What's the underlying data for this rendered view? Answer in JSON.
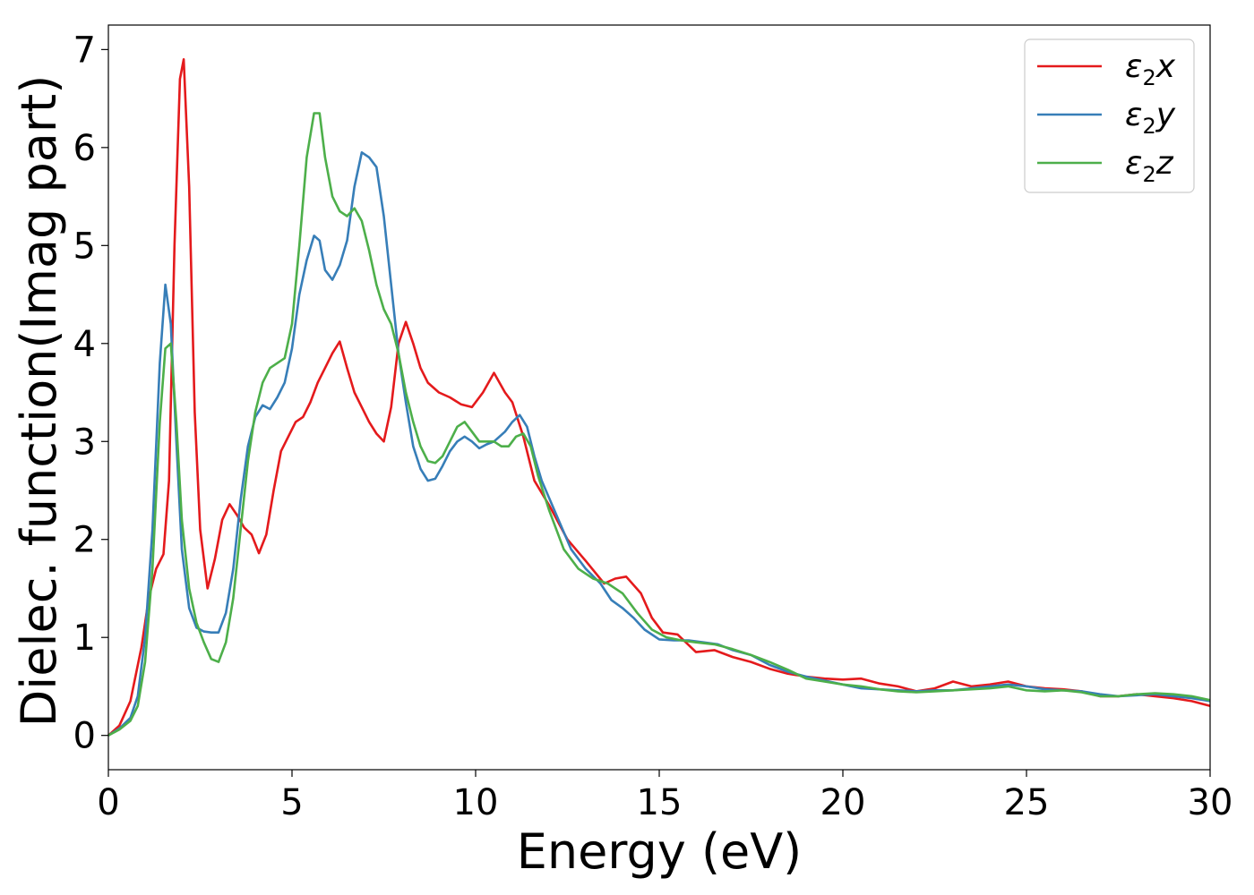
{
  "chart_data": {
    "type": "line",
    "title": "",
    "xlabel": "Energy (eV)",
    "ylabel": "Dielec. function(Imag part)",
    "xlim": [
      0,
      30
    ],
    "ylim": [
      -0.35,
      7.25
    ],
    "xticks": [
      0,
      5,
      10,
      15,
      20,
      25,
      30
    ],
    "yticks": [
      0,
      1,
      2,
      3,
      4,
      5,
      6,
      7
    ],
    "grid": false,
    "legend_position": "top-right",
    "series": [
      {
        "name": "ε2x",
        "legend": {
          "base": "ε",
          "sub": "2",
          "var": "x"
        },
        "color": "#e41a1c",
        "points": [
          [
            0,
            0
          ],
          [
            0.3,
            0.1
          ],
          [
            0.6,
            0.35
          ],
          [
            0.9,
            0.9
          ],
          [
            1.1,
            1.4
          ],
          [
            1.3,
            1.7
          ],
          [
            1.5,
            1.85
          ],
          [
            1.65,
            2.6
          ],
          [
            1.8,
            5.0
          ],
          [
            1.95,
            6.7
          ],
          [
            2.05,
            6.9
          ],
          [
            2.2,
            5.6
          ],
          [
            2.35,
            3.3
          ],
          [
            2.5,
            2.1
          ],
          [
            2.7,
            1.5
          ],
          [
            2.9,
            1.8
          ],
          [
            3.1,
            2.2
          ],
          [
            3.3,
            2.36
          ],
          [
            3.5,
            2.25
          ],
          [
            3.7,
            2.12
          ],
          [
            3.9,
            2.05
          ],
          [
            4.1,
            1.86
          ],
          [
            4.3,
            2.05
          ],
          [
            4.5,
            2.5
          ],
          [
            4.7,
            2.9
          ],
          [
            4.9,
            3.05
          ],
          [
            5.1,
            3.2
          ],
          [
            5.3,
            3.25
          ],
          [
            5.5,
            3.4
          ],
          [
            5.7,
            3.6
          ],
          [
            5.9,
            3.75
          ],
          [
            6.1,
            3.9
          ],
          [
            6.3,
            4.02
          ],
          [
            6.5,
            3.75
          ],
          [
            6.7,
            3.5
          ],
          [
            6.9,
            3.35
          ],
          [
            7.1,
            3.2
          ],
          [
            7.3,
            3.08
          ],
          [
            7.5,
            3.0
          ],
          [
            7.7,
            3.35
          ],
          [
            7.9,
            4.0
          ],
          [
            8.1,
            4.22
          ],
          [
            8.3,
            4.0
          ],
          [
            8.5,
            3.75
          ],
          [
            8.7,
            3.6
          ],
          [
            9.0,
            3.5
          ],
          [
            9.3,
            3.45
          ],
          [
            9.6,
            3.38
          ],
          [
            9.9,
            3.35
          ],
          [
            10.2,
            3.5
          ],
          [
            10.5,
            3.7
          ],
          [
            10.8,
            3.5
          ],
          [
            11.0,
            3.4
          ],
          [
            11.3,
            3.05
          ],
          [
            11.6,
            2.6
          ],
          [
            12.0,
            2.35
          ],
          [
            12.5,
            2.0
          ],
          [
            13.0,
            1.78
          ],
          [
            13.5,
            1.55
          ],
          [
            13.8,
            1.6
          ],
          [
            14.1,
            1.62
          ],
          [
            14.5,
            1.45
          ],
          [
            14.8,
            1.2
          ],
          [
            15.1,
            1.05
          ],
          [
            15.5,
            1.03
          ],
          [
            16.0,
            0.85
          ],
          [
            16.5,
            0.87
          ],
          [
            17.0,
            0.8
          ],
          [
            17.5,
            0.75
          ],
          [
            18.0,
            0.68
          ],
          [
            18.5,
            0.63
          ],
          [
            19.0,
            0.6
          ],
          [
            19.5,
            0.58
          ],
          [
            20.0,
            0.57
          ],
          [
            20.5,
            0.58
          ],
          [
            21.0,
            0.53
          ],
          [
            21.5,
            0.5
          ],
          [
            22.0,
            0.45
          ],
          [
            22.5,
            0.48
          ],
          [
            23.0,
            0.55
          ],
          [
            23.5,
            0.5
          ],
          [
            24.0,
            0.52
          ],
          [
            24.5,
            0.55
          ],
          [
            25.0,
            0.5
          ],
          [
            25.5,
            0.48
          ],
          [
            26.0,
            0.47
          ],
          [
            26.5,
            0.45
          ],
          [
            27.0,
            0.4
          ],
          [
            27.5,
            0.4
          ],
          [
            28.0,
            0.42
          ],
          [
            28.5,
            0.4
          ],
          [
            29.0,
            0.38
          ],
          [
            29.5,
            0.35
          ],
          [
            30.0,
            0.3
          ]
        ]
      },
      {
        "name": "ε2y",
        "legend": {
          "base": "ε",
          "sub": "2",
          "var": "y"
        },
        "color": "#377eb8",
        "points": [
          [
            0,
            0
          ],
          [
            0.3,
            0.07
          ],
          [
            0.6,
            0.18
          ],
          [
            0.8,
            0.4
          ],
          [
            1.0,
            1.0
          ],
          [
            1.2,
            2.1
          ],
          [
            1.4,
            3.8
          ],
          [
            1.55,
            4.6
          ],
          [
            1.7,
            4.2
          ],
          [
            1.85,
            3.0
          ],
          [
            2.0,
            1.9
          ],
          [
            2.2,
            1.3
          ],
          [
            2.4,
            1.1
          ],
          [
            2.6,
            1.06
          ],
          [
            2.8,
            1.05
          ],
          [
            3.0,
            1.05
          ],
          [
            3.2,
            1.25
          ],
          [
            3.4,
            1.7
          ],
          [
            3.6,
            2.4
          ],
          [
            3.8,
            2.95
          ],
          [
            4.0,
            3.25
          ],
          [
            4.2,
            3.37
          ],
          [
            4.4,
            3.33
          ],
          [
            4.6,
            3.45
          ],
          [
            4.8,
            3.6
          ],
          [
            5.0,
            3.95
          ],
          [
            5.2,
            4.5
          ],
          [
            5.4,
            4.85
          ],
          [
            5.6,
            5.1
          ],
          [
            5.75,
            5.05
          ],
          [
            5.9,
            4.75
          ],
          [
            6.1,
            4.65
          ],
          [
            6.3,
            4.8
          ],
          [
            6.5,
            5.05
          ],
          [
            6.7,
            5.6
          ],
          [
            6.9,
            5.95
          ],
          [
            7.1,
            5.9
          ],
          [
            7.3,
            5.8
          ],
          [
            7.5,
            5.3
          ],
          [
            7.7,
            4.6
          ],
          [
            7.9,
            3.9
          ],
          [
            8.1,
            3.4
          ],
          [
            8.3,
            2.95
          ],
          [
            8.5,
            2.72
          ],
          [
            8.7,
            2.6
          ],
          [
            8.9,
            2.62
          ],
          [
            9.1,
            2.75
          ],
          [
            9.3,
            2.9
          ],
          [
            9.5,
            3.0
          ],
          [
            9.7,
            3.05
          ],
          [
            9.9,
            3.0
          ],
          [
            10.1,
            2.93
          ],
          [
            10.3,
            2.97
          ],
          [
            10.5,
            3.0
          ],
          [
            10.8,
            3.1
          ],
          [
            11.0,
            3.2
          ],
          [
            11.2,
            3.27
          ],
          [
            11.4,
            3.15
          ],
          [
            11.6,
            2.85
          ],
          [
            11.8,
            2.6
          ],
          [
            12.2,
            2.25
          ],
          [
            12.6,
            1.9
          ],
          [
            13.0,
            1.7
          ],
          [
            13.4,
            1.55
          ],
          [
            13.7,
            1.38
          ],
          [
            14.0,
            1.3
          ],
          [
            14.3,
            1.2
          ],
          [
            14.6,
            1.08
          ],
          [
            15.0,
            0.98
          ],
          [
            15.4,
            0.97
          ],
          [
            15.8,
            0.97
          ],
          [
            16.2,
            0.95
          ],
          [
            16.6,
            0.93
          ],
          [
            17.0,
            0.87
          ],
          [
            17.5,
            0.82
          ],
          [
            18.0,
            0.72
          ],
          [
            18.5,
            0.65
          ],
          [
            19.0,
            0.6
          ],
          [
            19.5,
            0.56
          ],
          [
            20.0,
            0.52
          ],
          [
            20.5,
            0.48
          ],
          [
            21.0,
            0.47
          ],
          [
            21.5,
            0.46
          ],
          [
            22.0,
            0.45
          ],
          [
            22.5,
            0.46
          ],
          [
            23.0,
            0.46
          ],
          [
            23.5,
            0.48
          ],
          [
            24.0,
            0.5
          ],
          [
            24.5,
            0.52
          ],
          [
            25.0,
            0.5
          ],
          [
            25.5,
            0.47
          ],
          [
            26.0,
            0.46
          ],
          [
            26.5,
            0.45
          ],
          [
            27.0,
            0.42
          ],
          [
            27.5,
            0.4
          ],
          [
            28.0,
            0.41
          ],
          [
            28.5,
            0.42
          ],
          [
            29.0,
            0.4
          ],
          [
            29.5,
            0.38
          ],
          [
            30.0,
            0.35
          ]
        ]
      },
      {
        "name": "ε2z",
        "legend": {
          "base": "ε",
          "sub": "2",
          "var": "z"
        },
        "color": "#4daf4a",
        "points": [
          [
            0,
            0
          ],
          [
            0.3,
            0.06
          ],
          [
            0.6,
            0.15
          ],
          [
            0.8,
            0.3
          ],
          [
            1.0,
            0.75
          ],
          [
            1.2,
            1.7
          ],
          [
            1.4,
            3.2
          ],
          [
            1.55,
            3.95
          ],
          [
            1.7,
            4.0
          ],
          [
            1.85,
            3.2
          ],
          [
            2.0,
            2.2
          ],
          [
            2.2,
            1.5
          ],
          [
            2.4,
            1.15
          ],
          [
            2.6,
            0.95
          ],
          [
            2.8,
            0.78
          ],
          [
            3.0,
            0.75
          ],
          [
            3.2,
            0.95
          ],
          [
            3.4,
            1.4
          ],
          [
            3.6,
            2.1
          ],
          [
            3.8,
            2.8
          ],
          [
            4.0,
            3.3
          ],
          [
            4.2,
            3.6
          ],
          [
            4.4,
            3.75
          ],
          [
            4.6,
            3.8
          ],
          [
            4.8,
            3.85
          ],
          [
            5.0,
            4.2
          ],
          [
            5.2,
            5.0
          ],
          [
            5.4,
            5.9
          ],
          [
            5.6,
            6.35
          ],
          [
            5.75,
            6.35
          ],
          [
            5.9,
            5.9
          ],
          [
            6.1,
            5.5
          ],
          [
            6.3,
            5.35
          ],
          [
            6.5,
            5.3
          ],
          [
            6.7,
            5.38
          ],
          [
            6.9,
            5.25
          ],
          [
            7.1,
            4.95
          ],
          [
            7.3,
            4.6
          ],
          [
            7.5,
            4.35
          ],
          [
            7.7,
            4.2
          ],
          [
            7.9,
            3.9
          ],
          [
            8.1,
            3.5
          ],
          [
            8.3,
            3.2
          ],
          [
            8.5,
            2.95
          ],
          [
            8.7,
            2.8
          ],
          [
            8.9,
            2.78
          ],
          [
            9.1,
            2.85
          ],
          [
            9.3,
            3.0
          ],
          [
            9.5,
            3.15
          ],
          [
            9.7,
            3.2
          ],
          [
            9.9,
            3.1
          ],
          [
            10.1,
            3.0
          ],
          [
            10.3,
            3.0
          ],
          [
            10.5,
            3.0
          ],
          [
            10.7,
            2.95
          ],
          [
            10.9,
            2.95
          ],
          [
            11.1,
            3.05
          ],
          [
            11.3,
            3.08
          ],
          [
            11.5,
            2.95
          ],
          [
            11.7,
            2.65
          ],
          [
            12.0,
            2.3
          ],
          [
            12.4,
            1.9
          ],
          [
            12.8,
            1.7
          ],
          [
            13.2,
            1.6
          ],
          [
            13.6,
            1.55
          ],
          [
            14.0,
            1.45
          ],
          [
            14.4,
            1.25
          ],
          [
            14.8,
            1.08
          ],
          [
            15.2,
            1.0
          ],
          [
            15.6,
            0.97
          ],
          [
            16.0,
            0.95
          ],
          [
            16.5,
            0.93
          ],
          [
            17.0,
            0.88
          ],
          [
            17.5,
            0.82
          ],
          [
            18.0,
            0.75
          ],
          [
            18.5,
            0.67
          ],
          [
            19.0,
            0.58
          ],
          [
            19.5,
            0.55
          ],
          [
            20.0,
            0.52
          ],
          [
            20.5,
            0.5
          ],
          [
            21.0,
            0.47
          ],
          [
            21.5,
            0.45
          ],
          [
            22.0,
            0.44
          ],
          [
            22.5,
            0.45
          ],
          [
            23.0,
            0.46
          ],
          [
            23.5,
            0.47
          ],
          [
            24.0,
            0.48
          ],
          [
            24.5,
            0.5
          ],
          [
            25.0,
            0.46
          ],
          [
            25.5,
            0.45
          ],
          [
            26.0,
            0.46
          ],
          [
            26.5,
            0.44
          ],
          [
            27.0,
            0.4
          ],
          [
            27.5,
            0.4
          ],
          [
            28.0,
            0.42
          ],
          [
            28.5,
            0.43
          ],
          [
            29.0,
            0.42
          ],
          [
            29.5,
            0.4
          ],
          [
            30.0,
            0.36
          ]
        ]
      }
    ]
  }
}
